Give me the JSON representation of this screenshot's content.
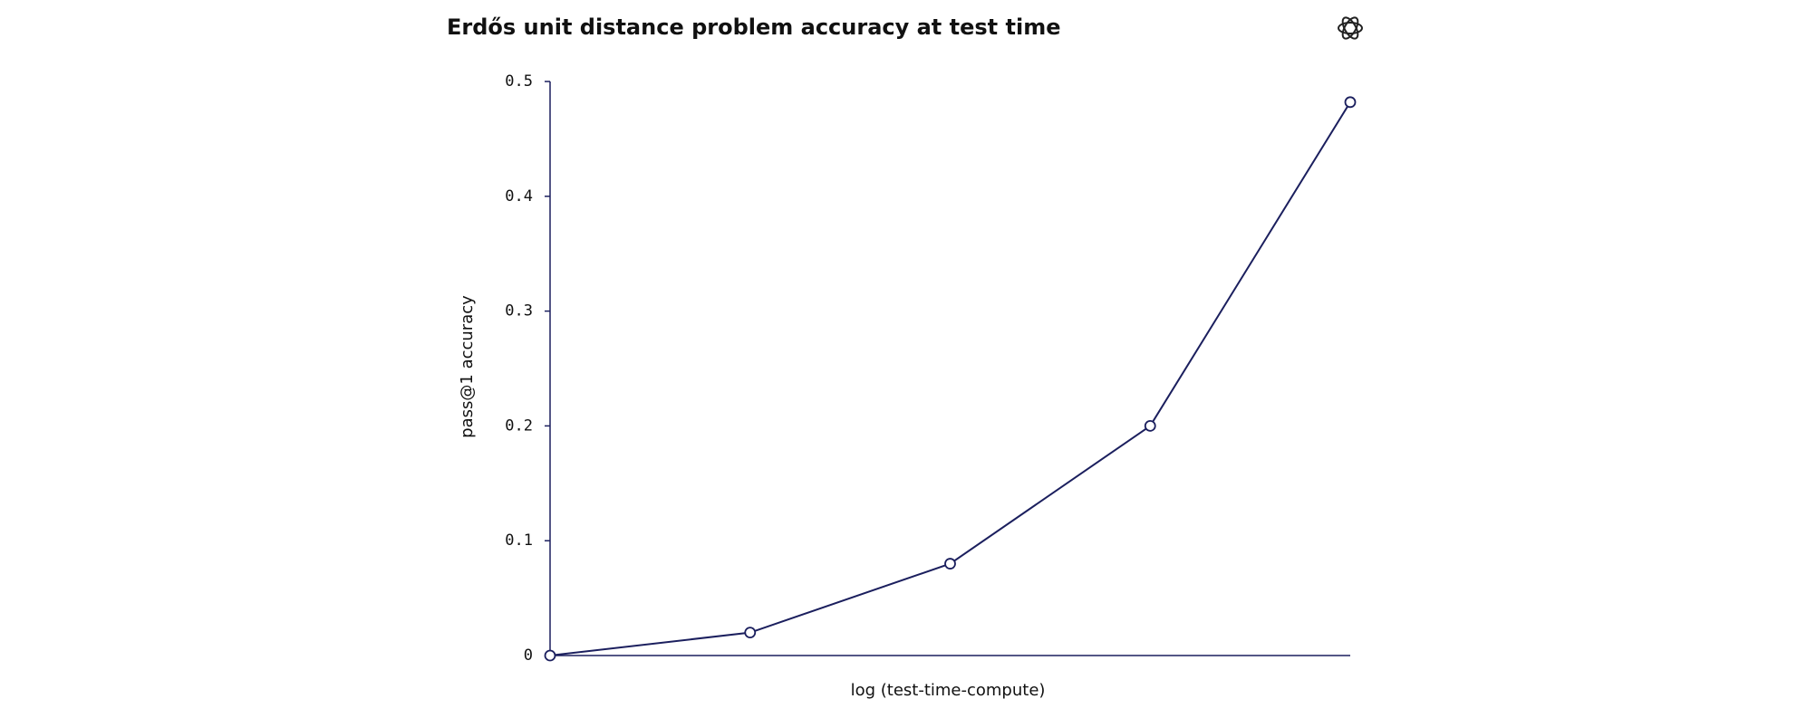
{
  "chart_data": {
    "type": "line",
    "title": "Erdős unit distance problem accuracy at test time",
    "x_label": "log (test-time-compute)",
    "y_label": "pass@1 accuracy",
    "categories": [
      null,
      null,
      null,
      null,
      null
    ],
    "series": [
      {
        "name": null,
        "color": "#1b1f5e",
        "values": [
          0,
          0.02,
          0.08,
          0.2,
          0.482
        ]
      }
    ],
    "ylim": [
      0,
      0.5
    ],
    "yticks": [
      0,
      0.1,
      0.2,
      0.3,
      0.4,
      0.5
    ],
    "grid": false
  }
}
